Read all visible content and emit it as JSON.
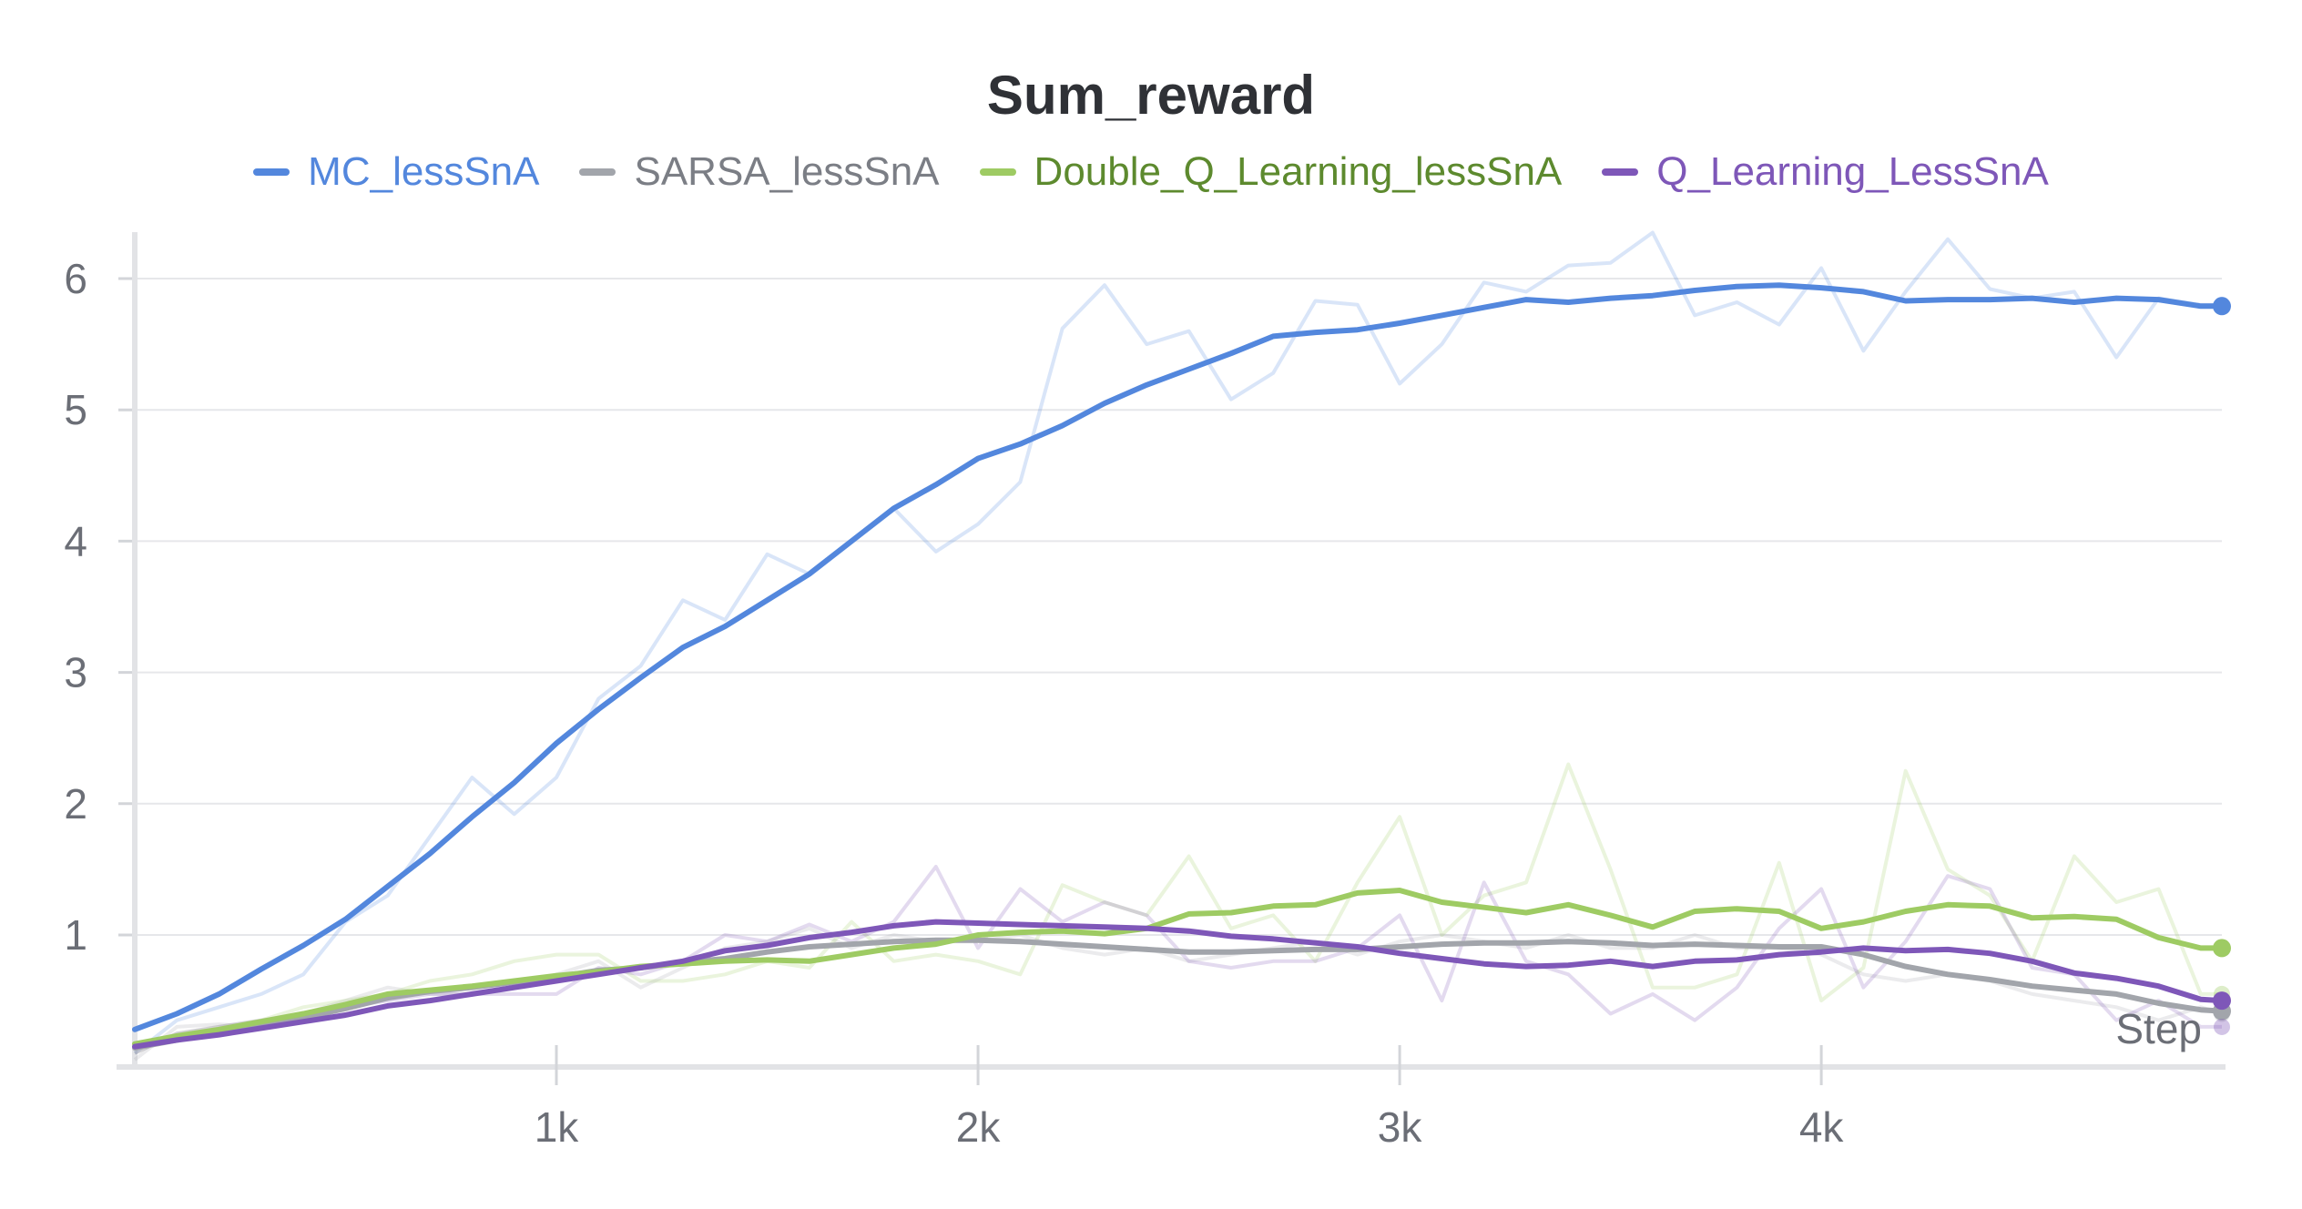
{
  "chart_data": {
    "type": "line",
    "title": "Sum_reward",
    "xlabel": "Step",
    "ylabel": "",
    "xlim": [
      0,
      4950
    ],
    "ylim": [
      0,
      6.5
    ],
    "x_ticks": [
      1000,
      2000,
      3000,
      4000
    ],
    "x_tick_labels": [
      "1k",
      "2k",
      "3k",
      "4k"
    ],
    "y_ticks": [
      1,
      2,
      3,
      4,
      5,
      6
    ],
    "grid": true,
    "legend_position": "top-center",
    "x": [
      0,
      100,
      200,
      300,
      400,
      500,
      600,
      700,
      800,
      900,
      1000,
      1100,
      1200,
      1300,
      1400,
      1500,
      1600,
      1700,
      1800,
      1900,
      2000,
      2100,
      2200,
      2300,
      2400,
      2500,
      2600,
      2700,
      2800,
      2900,
      3000,
      3100,
      3200,
      3300,
      3400,
      3500,
      3600,
      3700,
      3800,
      3900,
      4000,
      4100,
      4200,
      4300,
      4400,
      4500,
      4600,
      4700,
      4800,
      4900,
      4950
    ],
    "series": [
      {
        "name": "MC_lessSnA",
        "color": "#5387dd",
        "smoothed": [
          0.28,
          0.4,
          0.55,
          0.74,
          0.92,
          1.12,
          1.37,
          1.62,
          1.9,
          2.16,
          2.46,
          2.72,
          2.96,
          3.19,
          3.35,
          3.55,
          3.75,
          4.0,
          4.25,
          4.43,
          4.63,
          4.74,
          4.88,
          5.05,
          5.19,
          5.31,
          5.43,
          5.56,
          5.59,
          5.61,
          5.66,
          5.72,
          5.78,
          5.84,
          5.82,
          5.85,
          5.87,
          5.91,
          5.94,
          5.95,
          5.93,
          5.9,
          5.83,
          5.84,
          5.84,
          5.85,
          5.82,
          5.85,
          5.84,
          5.79,
          5.79
        ],
        "raw": [
          0.1,
          0.35,
          0.45,
          0.55,
          0.7,
          1.1,
          1.3,
          1.75,
          2.2,
          1.92,
          2.2,
          2.8,
          3.05,
          3.55,
          3.4,
          3.9,
          3.75,
          4.0,
          4.25,
          3.92,
          4.13,
          4.45,
          5.62,
          5.95,
          5.5,
          5.6,
          5.08,
          5.28,
          5.83,
          5.8,
          5.2,
          5.5,
          5.97,
          5.9,
          6.1,
          6.12,
          6.35,
          5.72,
          5.82,
          5.65,
          6.08,
          5.45,
          5.9,
          6.3,
          5.92,
          5.85,
          5.9,
          5.4,
          5.85,
          5.8,
          5.8
        ]
      },
      {
        "name": "SARSA_lessSnA",
        "color": "#a2a5ab",
        "smoothed": [
          0.14,
          0.2,
          0.26,
          0.32,
          0.37,
          0.44,
          0.52,
          0.57,
          0.6,
          0.64,
          0.68,
          0.73,
          0.75,
          0.79,
          0.82,
          0.87,
          0.91,
          0.93,
          0.95,
          0.96,
          0.96,
          0.95,
          0.93,
          0.91,
          0.89,
          0.87,
          0.87,
          0.88,
          0.89,
          0.89,
          0.91,
          0.93,
          0.94,
          0.94,
          0.95,
          0.94,
          0.92,
          0.93,
          0.92,
          0.91,
          0.91,
          0.85,
          0.76,
          0.7,
          0.66,
          0.61,
          0.58,
          0.55,
          0.48,
          0.43,
          0.42
        ],
        "raw": [
          0.05,
          0.3,
          0.32,
          0.3,
          0.4,
          0.5,
          0.6,
          0.55,
          0.55,
          0.6,
          0.7,
          0.8,
          0.6,
          0.75,
          0.9,
          0.95,
          1.05,
          0.9,
          1.0,
          0.95,
          0.95,
          1.0,
          0.9,
          0.85,
          0.9,
          0.8,
          0.85,
          0.9,
          0.95,
          0.85,
          0.95,
          1.0,
          0.95,
          0.9,
          1.0,
          0.9,
          0.9,
          1.0,
          0.9,
          0.9,
          0.85,
          0.7,
          0.65,
          0.7,
          0.65,
          0.55,
          0.5,
          0.45,
          0.35,
          0.45,
          0.4
        ]
      },
      {
        "name": "Double_Q_Learning_lessSnA",
        "color": "#9ecb63",
        "smoothed": [
          0.17,
          0.23,
          0.28,
          0.34,
          0.4,
          0.47,
          0.55,
          0.58,
          0.61,
          0.65,
          0.69,
          0.72,
          0.76,
          0.78,
          0.8,
          0.81,
          0.8,
          0.85,
          0.9,
          0.93,
          1.0,
          1.02,
          1.03,
          1.01,
          1.05,
          1.16,
          1.17,
          1.22,
          1.23,
          1.32,
          1.34,
          1.25,
          1.21,
          1.17,
          1.23,
          1.15,
          1.06,
          1.18,
          1.2,
          1.18,
          1.05,
          1.1,
          1.18,
          1.23,
          1.22,
          1.13,
          1.14,
          1.12,
          0.98,
          0.9,
          0.9
        ],
        "raw": [
          0.1,
          0.25,
          0.3,
          0.35,
          0.45,
          0.5,
          0.55,
          0.65,
          0.7,
          0.8,
          0.85,
          0.85,
          0.65,
          0.65,
          0.7,
          0.8,
          0.75,
          1.1,
          0.8,
          0.85,
          0.8,
          0.7,
          1.38,
          1.25,
          1.15,
          1.6,
          1.05,
          1.15,
          0.8,
          1.4,
          1.9,
          1.0,
          1.3,
          1.4,
          2.3,
          1.5,
          0.6,
          0.6,
          0.7,
          1.55,
          0.5,
          0.75,
          2.25,
          1.5,
          1.3,
          0.8,
          1.6,
          1.25,
          1.35,
          0.55,
          0.55
        ]
      },
      {
        "name": "Q_Learning_LessSnA",
        "color": "#7e57b8",
        "smoothed": [
          0.15,
          0.2,
          0.24,
          0.29,
          0.34,
          0.39,
          0.46,
          0.5,
          0.55,
          0.6,
          0.65,
          0.7,
          0.75,
          0.8,
          0.88,
          0.92,
          0.98,
          1.02,
          1.07,
          1.1,
          1.09,
          1.08,
          1.07,
          1.06,
          1.05,
          1.03,
          0.99,
          0.97,
          0.94,
          0.91,
          0.86,
          0.82,
          0.78,
          0.76,
          0.77,
          0.8,
          0.76,
          0.8,
          0.81,
          0.85,
          0.87,
          0.9,
          0.88,
          0.89,
          0.86,
          0.8,
          0.71,
          0.67,
          0.61,
          0.51,
          0.5
        ],
        "raw": [
          0.1,
          0.25,
          0.3,
          0.35,
          0.4,
          0.45,
          0.5,
          0.55,
          0.55,
          0.55,
          0.55,
          0.75,
          0.7,
          0.8,
          1.0,
          0.95,
          1.08,
          0.95,
          1.1,
          1.52,
          0.9,
          1.35,
          1.1,
          1.25,
          1.15,
          0.8,
          0.75,
          0.8,
          0.8,
          0.9,
          1.15,
          0.5,
          1.4,
          0.8,
          0.7,
          0.4,
          0.55,
          0.35,
          0.6,
          1.05,
          1.35,
          0.6,
          0.95,
          1.45,
          1.35,
          0.75,
          0.7,
          0.35,
          0.5,
          0.3,
          0.3
        ]
      }
    ]
  }
}
